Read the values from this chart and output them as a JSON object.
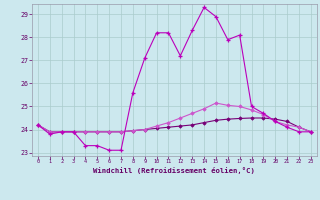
{
  "xlabel": "Windchill (Refroidissement éolien,°C)",
  "background_color": "#cce8ee",
  "grid_color": "#aacccc",
  "line_color_main": "#bb00bb",
  "line_color_flat1": "#770077",
  "line_color_flat2": "#cc55cc",
  "ylim": [
    22.85,
    29.45
  ],
  "xlim": [
    -0.5,
    23.5
  ],
  "yticks": [
    23,
    24,
    25,
    26,
    27,
    28,
    29
  ],
  "xticks": [
    0,
    1,
    2,
    3,
    4,
    5,
    6,
    7,
    8,
    9,
    10,
    11,
    12,
    13,
    14,
    15,
    16,
    17,
    18,
    19,
    20,
    21,
    22,
    23
  ],
  "hours": [
    0,
    1,
    2,
    3,
    4,
    5,
    6,
    7,
    8,
    9,
    10,
    11,
    12,
    13,
    14,
    15,
    16,
    17,
    18,
    19,
    20,
    21,
    22,
    23
  ],
  "series_main": [
    24.2,
    23.8,
    23.9,
    23.9,
    23.3,
    23.3,
    23.1,
    23.1,
    25.6,
    27.1,
    28.2,
    28.2,
    27.2,
    28.3,
    29.3,
    28.9,
    27.9,
    28.1,
    25.0,
    24.7,
    24.35,
    24.1,
    23.9,
    23.9
  ],
  "series_flat1": [
    24.2,
    23.9,
    23.9,
    23.9,
    23.9,
    23.9,
    23.9,
    23.9,
    23.95,
    24.0,
    24.05,
    24.1,
    24.15,
    24.2,
    24.3,
    24.4,
    24.45,
    24.48,
    24.5,
    24.5,
    24.45,
    24.35,
    24.1,
    23.9
  ],
  "series_flat2": [
    24.2,
    23.9,
    23.9,
    23.9,
    23.9,
    23.9,
    23.9,
    23.9,
    23.95,
    24.0,
    24.15,
    24.3,
    24.5,
    24.7,
    24.9,
    25.15,
    25.05,
    25.0,
    24.85,
    24.65,
    24.35,
    24.2,
    24.1,
    23.9
  ]
}
